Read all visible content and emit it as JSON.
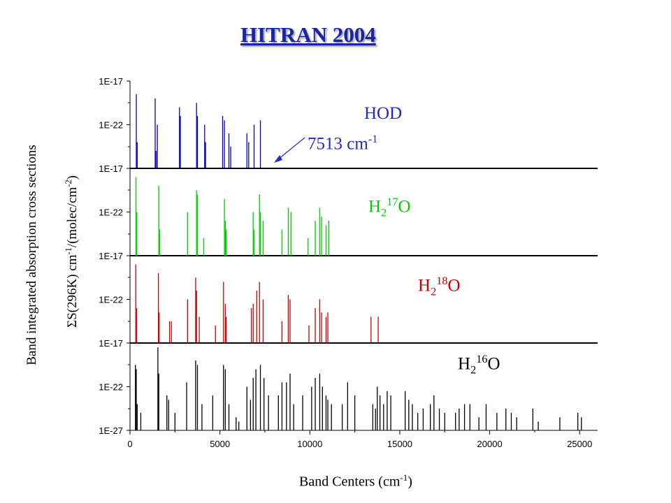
{
  "title": "HITRAN 2004",
  "chart_data": {
    "type": "bar",
    "title": "HITRAN 2004",
    "xlabel": "Band Centers (cm-1)",
    "ylabel": "Band integrated absorption cross sections ΣS(296K) cm-1/(molec/cm-2)",
    "xlim": [
      0,
      26000
    ],
    "x_ticks": [
      "0",
      "5000",
      "10000",
      "15000",
      "20000",
      "25000"
    ],
    "y_scale": "log",
    "grid": false,
    "annotation": "7513 cm-1",
    "panels": [
      {
        "name": "HOD",
        "color": "#0000cc",
        "y_ticks": [
          "1E-17",
          "1E-22"
        ],
        "bands": [
          [
            350,
            -18.5
          ],
          [
            400,
            -24
          ],
          [
            1400,
            -19
          ],
          [
            1450,
            -25
          ],
          [
            1520,
            -22
          ],
          [
            2750,
            -20
          ],
          [
            2800,
            -21
          ],
          [
            3700,
            -19.5
          ],
          [
            3750,
            -21
          ],
          [
            4150,
            -22
          ],
          [
            4200,
            -24
          ],
          [
            5150,
            -21
          ],
          [
            5250,
            -21.5
          ],
          [
            5500,
            -23
          ],
          [
            5600,
            -24.5
          ],
          [
            6500,
            -23
          ],
          [
            6600,
            -24
          ],
          [
            6900,
            -22
          ],
          [
            7250,
            -21.5
          ]
        ]
      },
      {
        "name": "H2 17O",
        "color": "#00cc00",
        "y_ticks": [
          "1E-17",
          "1E-22"
        ],
        "bands": [
          [
            330,
            -18
          ],
          [
            380,
            -22
          ],
          [
            1600,
            -19
          ],
          [
            1650,
            -24
          ],
          [
            3200,
            -22
          ],
          [
            3700,
            -19.5
          ],
          [
            3750,
            -20
          ],
          [
            4100,
            -25
          ],
          [
            5250,
            -20.5
          ],
          [
            5300,
            -23
          ],
          [
            5350,
            -24
          ],
          [
            6850,
            -22
          ],
          [
            6900,
            -24
          ],
          [
            7200,
            -20
          ],
          [
            7250,
            -22
          ],
          [
            7400,
            -23
          ],
          [
            8450,
            -24
          ],
          [
            8800,
            -21.5
          ],
          [
            8950,
            -22
          ],
          [
            9900,
            -25
          ],
          [
            10300,
            -23
          ],
          [
            10550,
            -21.5
          ],
          [
            10650,
            -22.5
          ],
          [
            10900,
            -23.5
          ],
          [
            11050,
            -23
          ]
        ]
      },
      {
        "name": "H2 18O",
        "color": "#cc0000",
        "y_ticks": [
          "1E-17",
          "1E-22"
        ],
        "bands": [
          [
            320,
            -18
          ],
          [
            370,
            -23
          ],
          [
            1580,
            -19
          ],
          [
            1620,
            -23.5
          ],
          [
            2200,
            -24.5
          ],
          [
            2300,
            -24.5
          ],
          [
            3200,
            -22
          ],
          [
            3650,
            -19.5
          ],
          [
            3700,
            -21
          ],
          [
            3850,
            -24
          ],
          [
            4750,
            -25
          ],
          [
            5200,
            -20
          ],
          [
            5300,
            -22.5
          ],
          [
            5350,
            -24
          ],
          [
            6750,
            -23
          ],
          [
            6850,
            -22.5
          ],
          [
            7050,
            -21
          ],
          [
            7200,
            -20
          ],
          [
            7400,
            -22
          ],
          [
            8450,
            -24.5
          ],
          [
            8800,
            -21.5
          ],
          [
            8900,
            -22
          ],
          [
            9950,
            -25
          ],
          [
            10300,
            -23
          ],
          [
            10550,
            -22
          ],
          [
            10650,
            -23.5
          ],
          [
            10900,
            -24
          ],
          [
            11000,
            -23.5
          ],
          [
            13400,
            -24
          ],
          [
            13800,
            -24
          ]
        ]
      },
      {
        "name": "H2 16O",
        "color": "#000000",
        "y_ticks": [
          "1E-17",
          "1E-22",
          "1E-27"
        ],
        "bands": [
          [
            300,
            -19.5
          ],
          [
            350,
            -20
          ],
          [
            400,
            -24
          ],
          [
            600,
            -25
          ],
          [
            1550,
            -17.5
          ],
          [
            1600,
            -20.5
          ],
          [
            2050,
            -23
          ],
          [
            2150,
            -23.5
          ],
          [
            2500,
            -25
          ],
          [
            3150,
            -21.5
          ],
          [
            3650,
            -19
          ],
          [
            3750,
            -19.5
          ],
          [
            4000,
            -24
          ],
          [
            4600,
            -23
          ],
          [
            5200,
            -19.5
          ],
          [
            5300,
            -20
          ],
          [
            5500,
            -24
          ],
          [
            5900,
            -25.5
          ],
          [
            6050,
            -26
          ],
          [
            6500,
            -22
          ],
          [
            6700,
            -23.5
          ],
          [
            6850,
            -21
          ],
          [
            7000,
            -20
          ],
          [
            7250,
            -19.5
          ],
          [
            7450,
            -21
          ],
          [
            7700,
            -23
          ],
          [
            8250,
            -23
          ],
          [
            8450,
            -21.5
          ],
          [
            8700,
            -21.5
          ],
          [
            8900,
            -20.5
          ],
          [
            9100,
            -24
          ],
          [
            9600,
            -23
          ],
          [
            10100,
            -22
          ],
          [
            10300,
            -21
          ],
          [
            10550,
            -20.5
          ],
          [
            10700,
            -22
          ],
          [
            10900,
            -23
          ],
          [
            11000,
            -23.5
          ],
          [
            11200,
            -24
          ],
          [
            11800,
            -24
          ],
          [
            12100,
            -21.5
          ],
          [
            12500,
            -23
          ],
          [
            13500,
            -24
          ],
          [
            13650,
            -24.5
          ],
          [
            13750,
            -22
          ],
          [
            13900,
            -23
          ],
          [
            14100,
            -24
          ],
          [
            14300,
            -22.5
          ],
          [
            14500,
            -23
          ],
          [
            15300,
            -22.5
          ],
          [
            15500,
            -23.5
          ],
          [
            15700,
            -24
          ],
          [
            16000,
            -25
          ],
          [
            16300,
            -24.5
          ],
          [
            16700,
            -24
          ],
          [
            16900,
            -23
          ],
          [
            17200,
            -24.5
          ],
          [
            17500,
            -25
          ],
          [
            18100,
            -25
          ],
          [
            18300,
            -24.5
          ],
          [
            18600,
            -24
          ],
          [
            18900,
            -24
          ],
          [
            19400,
            -25.5
          ],
          [
            19800,
            -24
          ],
          [
            20400,
            -25
          ],
          [
            20900,
            -24.5
          ],
          [
            21200,
            -25
          ],
          [
            21500,
            -25.5
          ],
          [
            22400,
            -24.5
          ],
          [
            22700,
            -26
          ],
          [
            23900,
            -25.5
          ],
          [
            24900,
            -25
          ],
          [
            25100,
            -25.5
          ]
        ]
      }
    ]
  }
}
